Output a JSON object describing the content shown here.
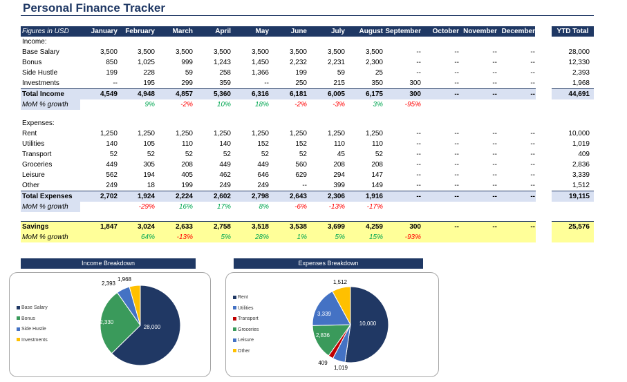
{
  "title": "Personal Finance Tracker",
  "header": {
    "figures_label": "Figures in USD",
    "months": [
      "January",
      "February",
      "March",
      "April",
      "May",
      "June",
      "July",
      "August",
      "September",
      "October",
      "November",
      "December"
    ],
    "ytd_label": "YTD Total"
  },
  "income": {
    "section_label": "Income:",
    "rows": [
      {
        "label": "Base Salary",
        "values": [
          "3,500",
          "3,500",
          "3,500",
          "3,500",
          "3,500",
          "3,500",
          "3,500",
          "3,500",
          "--",
          "--",
          "--",
          "--"
        ],
        "ytd": "28,000"
      },
      {
        "label": "Bonus",
        "values": [
          "850",
          "1,025",
          "999",
          "1,243",
          "1,450",
          "2,232",
          "2,231",
          "2,300",
          "--",
          "--",
          "--",
          "--"
        ],
        "ytd": "12,330"
      },
      {
        "label": "Side Hustle",
        "values": [
          "199",
          "228",
          "59",
          "258",
          "1,366",
          "199",
          "59",
          "25",
          "--",
          "--",
          "--",
          "--"
        ],
        "ytd": "2,393"
      },
      {
        "label": "Investments",
        "values": [
          "--",
          "195",
          "299",
          "359",
          "--",
          "250",
          "215",
          "350",
          "300",
          "--",
          "--",
          "--"
        ],
        "ytd": "1,968"
      }
    ],
    "total": {
      "label": "Total Income",
      "values": [
        "4,549",
        "4,948",
        "4,857",
        "5,360",
        "6,316",
        "6,181",
        "6,005",
        "6,175",
        "300",
        "--",
        "--",
        "--"
      ],
      "ytd": "44,691"
    },
    "mom": {
      "label": "MoM % growth",
      "values": [
        "",
        "9%",
        "-2%",
        "10%",
        "18%",
        "-2%",
        "-3%",
        "3%",
        "-95%",
        "",
        "",
        ""
      ]
    }
  },
  "expenses": {
    "section_label": "Expenses:",
    "rows": [
      {
        "label": "Rent",
        "values": [
          "1,250",
          "1,250",
          "1,250",
          "1,250",
          "1,250",
          "1,250",
          "1,250",
          "1,250",
          "--",
          "--",
          "--",
          "--"
        ],
        "ytd": "10,000"
      },
      {
        "label": "Utilities",
        "values": [
          "140",
          "105",
          "110",
          "140",
          "152",
          "152",
          "110",
          "110",
          "--",
          "--",
          "--",
          "--"
        ],
        "ytd": "1,019"
      },
      {
        "label": "Transport",
        "values": [
          "52",
          "52",
          "52",
          "52",
          "52",
          "52",
          "45",
          "52",
          "--",
          "--",
          "--",
          "--"
        ],
        "ytd": "409"
      },
      {
        "label": "Groceries",
        "values": [
          "449",
          "305",
          "208",
          "449",
          "449",
          "560",
          "208",
          "208",
          "--",
          "--",
          "--",
          "--"
        ],
        "ytd": "2,836"
      },
      {
        "label": "Leisure",
        "values": [
          "562",
          "194",
          "405",
          "462",
          "646",
          "629",
          "294",
          "147",
          "--",
          "--",
          "--",
          "--"
        ],
        "ytd": "3,339"
      },
      {
        "label": "Other",
        "values": [
          "249",
          "18",
          "199",
          "249",
          "249",
          "--",
          "399",
          "149",
          "--",
          "--",
          "--",
          "--"
        ],
        "ytd": "1,512"
      }
    ],
    "total": {
      "label": "Total Expenses",
      "values": [
        "2,702",
        "1,924",
        "2,224",
        "2,602",
        "2,798",
        "2,643",
        "2,306",
        "1,916",
        "--",
        "--",
        "--",
        "--"
      ],
      "ytd": "19,115"
    },
    "mom": {
      "label": "MoM % growth",
      "values": [
        "",
        "-29%",
        "16%",
        "17%",
        "8%",
        "-6%",
        "-13%",
        "-17%",
        "",
        "",
        "",
        ""
      ]
    }
  },
  "savings": {
    "label": "Savings",
    "values": [
      "1,847",
      "3,024",
      "2,633",
      "2,758",
      "3,518",
      "3,538",
      "3,699",
      "4,259",
      "300",
      "--",
      "--",
      "--"
    ],
    "ytd": "25,576",
    "mom": {
      "label": "MoM % growth",
      "values": [
        "",
        "64%",
        "-13%",
        "5%",
        "28%",
        "1%",
        "5%",
        "15%",
        "-93%",
        "",
        "",
        ""
      ]
    }
  },
  "chart_data": [
    {
      "type": "pie",
      "title": "Income Breakdown",
      "categories": [
        "Base Salary",
        "Bonus",
        "Side Hustle",
        "Investments"
      ],
      "values": [
        28000,
        12330,
        2393,
        1968
      ],
      "labels": [
        "28,000",
        "12,330",
        "2,393",
        "1,968"
      ],
      "colors": [
        "#203864",
        "#3a9a5b",
        "#4472c4",
        "#ffc000"
      ]
    },
    {
      "type": "pie",
      "title": "Expenses Breakdown",
      "categories": [
        "Rent",
        "Utilities",
        "Transport",
        "Groceries",
        "Leisure",
        "Other"
      ],
      "values": [
        10000,
        1019,
        409,
        2836,
        3339,
        1512
      ],
      "labels": [
        "10,000",
        "1,019",
        "409",
        "2,836",
        "3,339",
        "1,512"
      ],
      "colors": [
        "#203864",
        "#4472c4",
        "#c00000",
        "#3a9a5b",
        "#4472c4",
        "#ffc000"
      ]
    }
  ]
}
